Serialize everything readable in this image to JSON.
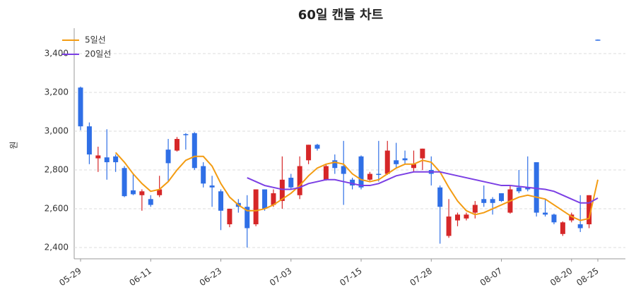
{
  "chart_data": {
    "type": "candlestick",
    "title": "60일 캔들 차트",
    "y_label": "원",
    "categories": [
      "05-29",
      null,
      null,
      null,
      null,
      null,
      null,
      null,
      "06-11",
      null,
      null,
      null,
      null,
      null,
      null,
      null,
      "06-23",
      null,
      null,
      null,
      null,
      null,
      null,
      null,
      "07-03",
      null,
      null,
      null,
      null,
      null,
      null,
      null,
      "07-15",
      null,
      null,
      null,
      null,
      null,
      null,
      null,
      "07-28",
      null,
      null,
      null,
      null,
      null,
      null,
      null,
      "08-07",
      null,
      null,
      null,
      null,
      null,
      null,
      null,
      "08-20",
      null,
      null,
      "08-25"
    ],
    "open": [
      3225,
      3025,
      2860,
      2865,
      2870,
      2810,
      2695,
      2670,
      2650,
      2670,
      2905,
      2900,
      2985,
      2990,
      2820,
      2720,
      2690,
      2520,
      2630,
      2610,
      2520,
      2700,
      2620,
      2640,
      2760,
      2670,
      2850,
      2930,
      2750,
      2850,
      2820,
      2750,
      2870,
      2750,
      2780,
      2780,
      2850,
      2860,
      2810,
      2860,
      2800,
      2710,
      2460,
      2540,
      2550,
      2580,
      2650,
      2650,
      2680,
      2580,
      2710,
      2710,
      2840,
      2580,
      2570,
      2470,
      2540,
      2520,
      2520,
      3472
    ],
    "high": [
      3230,
      3045,
      2920,
      3010,
      2880,
      2820,
      2780,
      2700,
      2670,
      2770,
      2960,
      2970,
      2990,
      2995,
      2840,
      2770,
      2700,
      2600,
      2650,
      2670,
      2700,
      2700,
      2700,
      2870,
      2780,
      2870,
      2930,
      2935,
      2830,
      2880,
      2950,
      2760,
      2875,
      2790,
      2950,
      2950,
      2940,
      2900,
      2900,
      2910,
      2870,
      2720,
      2650,
      2580,
      2580,
      2640,
      2720,
      2660,
      2680,
      2720,
      2800,
      2870,
      2840,
      2650,
      2575,
      2535,
      2580,
      2670,
      2670,
      3473
    ],
    "low": [
      3005,
      2830,
      2790,
      2750,
      2790,
      2660,
      2670,
      2590,
      2610,
      2660,
      2740,
      2895,
      2905,
      2800,
      2710,
      2610,
      2490,
      2505,
      2580,
      2400,
      2510,
      2590,
      2610,
      2600,
      2700,
      2650,
      2830,
      2900,
      2745,
      2780,
      2620,
      2700,
      2700,
      2745,
      2740,
      2775,
      2810,
      2830,
      2790,
      2800,
      2720,
      2420,
      2450,
      2510,
      2540,
      2550,
      2610,
      2570,
      2635,
      2575,
      2680,
      2690,
      2560,
      2560,
      2520,
      2460,
      2530,
      2480,
      2500,
      3467
    ],
    "close": [
      3025,
      2880,
      2875,
      2840,
      2840,
      2665,
      2675,
      2690,
      2620,
      2700,
      2835,
      2960,
      2980,
      2810,
      2730,
      2710,
      2590,
      2600,
      2610,
      2500,
      2700,
      2600,
      2680,
      2750,
      2710,
      2820,
      2930,
      2910,
      2820,
      2810,
      2780,
      2720,
      2710,
      2780,
      2775,
      2900,
      2830,
      2850,
      2830,
      2910,
      2780,
      2610,
      2560,
      2570,
      2570,
      2620,
      2630,
      2630,
      2640,
      2700,
      2690,
      2700,
      2580,
      2570,
      2530,
      2530,
      2570,
      2500,
      2670,
      3468
    ],
    "up_color": "#d62728",
    "down_color": "#2f6fe6",
    "lines": [
      {
        "name": "5일선",
        "color": "#f39c12",
        "values": [
          null,
          null,
          null,
          null,
          2890,
          2840,
          2780,
          2730,
          2690,
          2700,
          2740,
          2800,
          2850,
          2870,
          2870,
          2820,
          2730,
          2660,
          2620,
          2590,
          2590,
          2600,
          2620,
          2650,
          2680,
          2720,
          2770,
          2810,
          2830,
          2840,
          2830,
          2780,
          2750,
          2740,
          2750,
          2780,
          2810,
          2830,
          2830,
          2850,
          2840,
          2790,
          2710,
          2640,
          2590,
          2570,
          2580,
          2600,
          2620,
          2640,
          2660,
          2670,
          2660,
          2650,
          2620,
          2590,
          2560,
          2540,
          2550,
          2750
        ]
      },
      {
        "name": "20일선",
        "color": "#7b3fe4",
        "values": [
          null,
          null,
          null,
          null,
          null,
          null,
          null,
          null,
          null,
          null,
          null,
          null,
          null,
          null,
          null,
          null,
          null,
          null,
          null,
          2760,
          2740,
          2720,
          2710,
          2700,
          2700,
          2710,
          2730,
          2740,
          2750,
          2750,
          2740,
          2730,
          2720,
          2720,
          2730,
          2750,
          2770,
          2780,
          2790,
          2790,
          2790,
          2790,
          2780,
          2770,
          2760,
          2750,
          2740,
          2730,
          2720,
          2720,
          2715,
          2710,
          2705,
          2700,
          2690,
          2670,
          2650,
          2630,
          2630,
          2655
        ]
      }
    ],
    "ylim": [
      2342,
      3531
    ],
    "yticks": [
      {
        "value": 2400,
        "label": "2,400"
      },
      {
        "value": 2600,
        "label": "2,600"
      },
      {
        "value": 2800,
        "label": "2,800"
      },
      {
        "value": 3000,
        "label": "3,000"
      },
      {
        "value": 3200,
        "label": "3,200"
      },
      {
        "value": 3400,
        "label": "3,400"
      }
    ],
    "grid": true,
    "legend": "upper left"
  }
}
